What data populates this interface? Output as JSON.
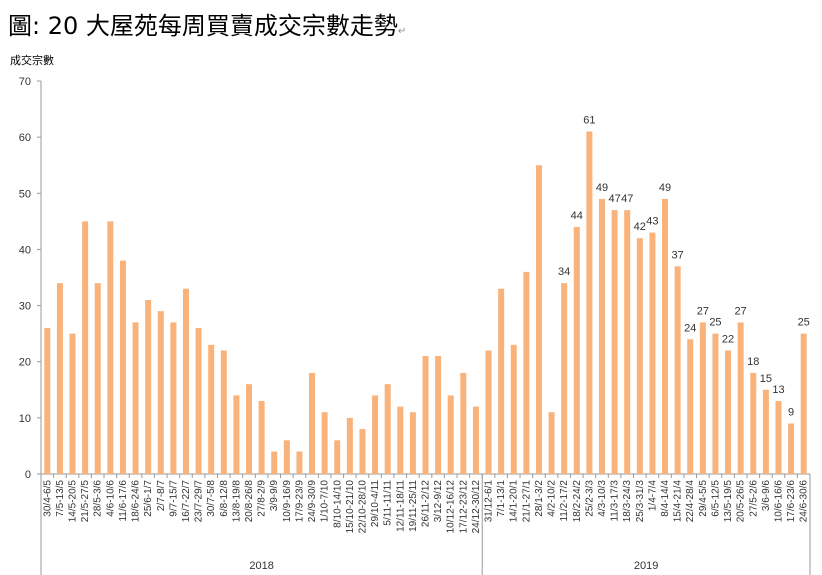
{
  "title": "圖: 20 大屋苑每周買賣成交宗數走勢",
  "title_mark": "↵",
  "chart_data": {
    "type": "bar",
    "title": "圖: 20 大屋苑每周買賣成交宗數走勢",
    "ylabel": "成交宗數",
    "xlabel": "",
    "ylim": [
      0,
      70
    ],
    "yticks": [
      0,
      10,
      20,
      30,
      40,
      50,
      60,
      70
    ],
    "bar_color": "#F9B27A",
    "groups": [
      {
        "label": "2018",
        "count": 35
      },
      {
        "label": "2019",
        "count": 26
      }
    ],
    "categories": [
      "30/4-6/5",
      "7/5-13/5",
      "14/5-20/5",
      "21/5-27/5",
      "28/5-3/6",
      "4/6-10/6",
      "11/6-17/6",
      "18/6-24/6",
      "25/6-1/7",
      "2/7-8/7",
      "9/7-15/7",
      "16/7-22/7",
      "23/7-29/7",
      "30/7-5/8",
      "6/8-12/8",
      "13/8-19/8",
      "20/8-26/8",
      "27/8-2/9",
      "3/9-9/9",
      "10/9-16/9",
      "17/9-23/9",
      "24/9-30/9",
      "1/10-7/10",
      "8/10-14/10",
      "15/10-21/10",
      "22/10-28/10",
      "29/10-4/11",
      "5/11-11/11",
      "12/11-18/11",
      "19/11-25/11",
      "26/11-2/12",
      "3/12-9/12",
      "10/12-16/12",
      "17/12-23/12",
      "24/12-30/12",
      "31/12-6/1",
      "7/1-13/1",
      "14/1-20/1",
      "21/1-27/1",
      "28/1-3/2",
      "4/2-10/2",
      "11/2-17/2",
      "18/2-24/2",
      "25/2-3/3",
      "4/3-10/3",
      "11/3-17/3",
      "18/3-24/3",
      "25/3-31/3",
      "1/4-7/4",
      "8/4-14/4",
      "15/4-21/4",
      "22/4-28/4",
      "29/4-5/5",
      "6/5-12/5",
      "13/5-19/5",
      "20/5-26/5",
      "27/5-2/6",
      "3/6-9/6",
      "10/6-16/6",
      "17/6-23/6",
      "24/6-30/6"
    ],
    "values": [
      26,
      34,
      25,
      45,
      34,
      45,
      38,
      27,
      31,
      29,
      27,
      33,
      26,
      23,
      22,
      14,
      16,
      13,
      4,
      6,
      4,
      18,
      11,
      6,
      10,
      8,
      14,
      16,
      12,
      11,
      21,
      21,
      14,
      18,
      12,
      22,
      33,
      23,
      36,
      55,
      11,
      34,
      44,
      61,
      49,
      47,
      47,
      42,
      43,
      49,
      37,
      24,
      27,
      25,
      22,
      27,
      18,
      15,
      13,
      9,
      25
    ],
    "data_labels_from_index": 41
  }
}
